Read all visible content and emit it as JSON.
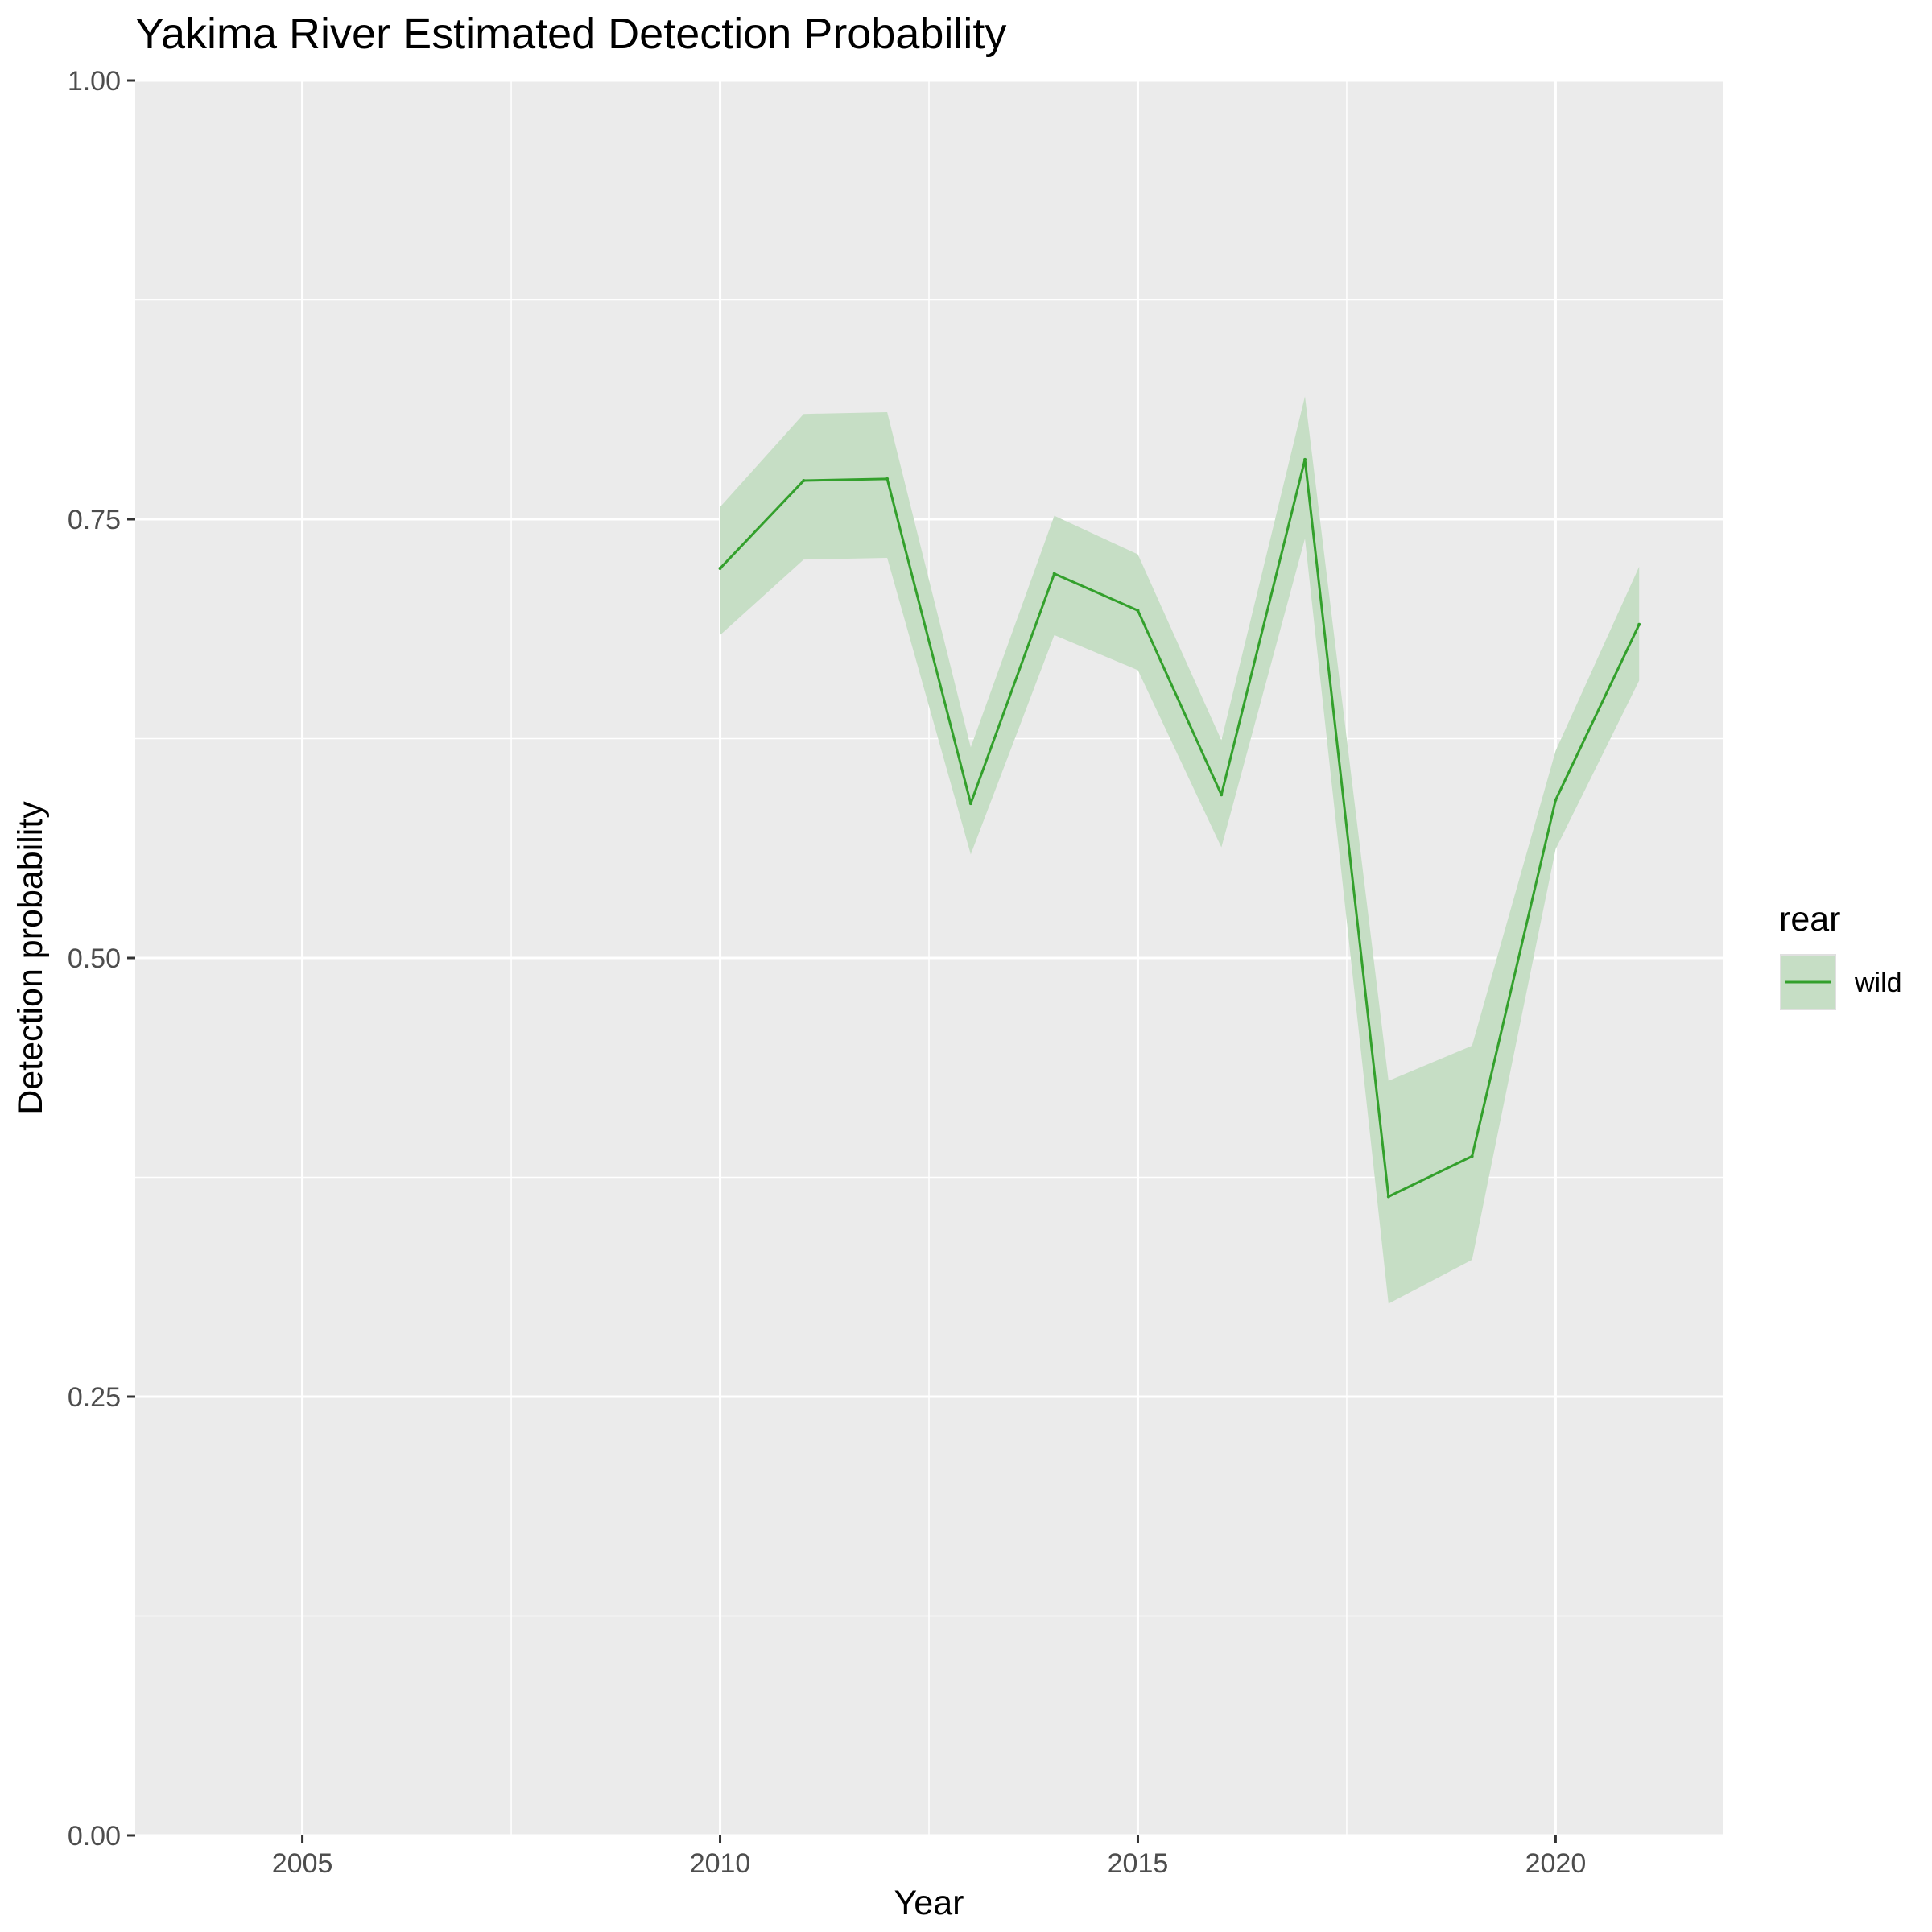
{
  "chart_data": {
    "type": "line",
    "title": "Yakima River Estimated Detection Probability",
    "xlabel": "Year",
    "ylabel": "Detection probability",
    "xlim": [
      2003,
      2022
    ],
    "ylim": [
      0,
      1
    ],
    "x_ticks": [
      2005,
      2010,
      2015,
      2020
    ],
    "x_tick_labels": [
      "2005",
      "2010",
      "2015",
      "2020"
    ],
    "y_ticks": [
      0,
      0.25,
      0.5,
      0.75,
      1
    ],
    "y_tick_labels": [
      "0.00",
      "0.25",
      "0.50",
      "0.75",
      "1.00"
    ],
    "grid": true,
    "legend": {
      "title": "rear",
      "position": "right"
    },
    "series": [
      {
        "name": "wild",
        "color": "#33a02c",
        "ribbon_color": "#c6dec5",
        "x": [
          2010,
          2011,
          2012,
          2013,
          2014,
          2015,
          2016,
          2017,
          2018,
          2019,
          2020,
          2021
        ],
        "y": [
          0.722,
          0.772,
          0.773,
          0.588,
          0.719,
          0.698,
          0.593,
          0.784,
          0.364,
          0.387,
          0.59,
          0.69
        ],
        "lower": [
          0.684,
          0.727,
          0.728,
          0.559,
          0.684,
          0.664,
          0.563,
          0.739,
          0.303,
          0.328,
          0.562,
          0.658
        ],
        "upper": [
          0.757,
          0.81,
          0.811,
          0.62,
          0.752,
          0.73,
          0.624,
          0.82,
          0.43,
          0.45,
          0.618,
          0.723
        ]
      }
    ]
  }
}
